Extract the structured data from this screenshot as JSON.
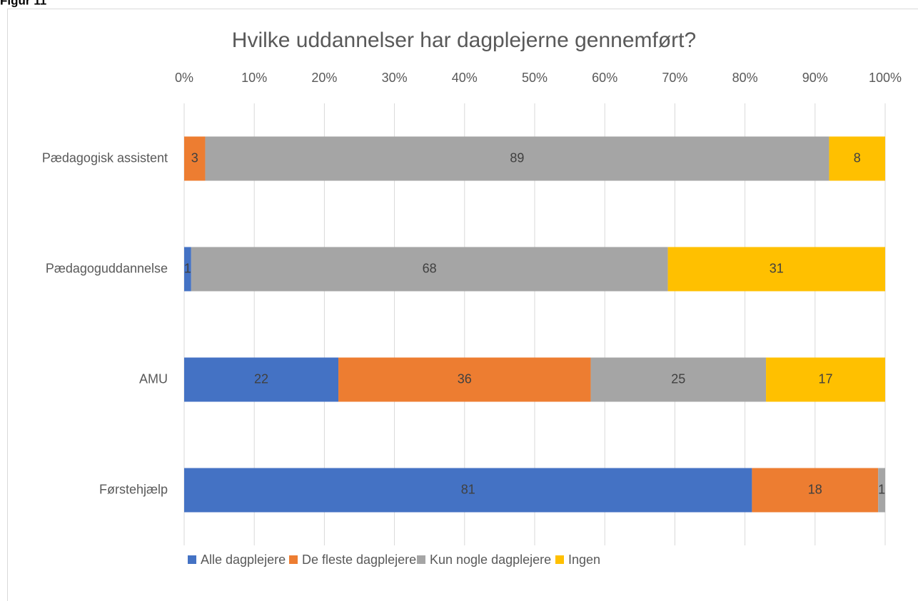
{
  "figure_label": "Figur 11",
  "chart_data": {
    "type": "stacked_barh",
    "title": "Hvilke uddannelser har dagplejerne gennemført?",
    "categories": [
      "Pædagogisk assistent",
      "Pædagoguddannelse",
      "AMU",
      "Førstehjælp"
    ],
    "series": [
      {
        "name": "Alle dagplejere",
        "color": "#4472c4",
        "values": [
          0,
          1,
          22,
          81
        ]
      },
      {
        "name": "De fleste dagplejere",
        "color": "#ed7d31",
        "values": [
          3,
          0,
          36,
          18
        ]
      },
      {
        "name": "Kun nogle dagplejere",
        "color": "#a5a5a5",
        "values": [
          89,
          68,
          25,
          1
        ]
      },
      {
        "name": "Ingen",
        "color": "#ffc000",
        "values": [
          8,
          31,
          17,
          0
        ]
      }
    ],
    "xlim": [
      0,
      100
    ],
    "xticks": [
      {
        "value": 0,
        "label": "0%"
      },
      {
        "value": 10,
        "label": "10%"
      },
      {
        "value": 20,
        "label": "20%"
      },
      {
        "value": 30,
        "label": "30%"
      },
      {
        "value": 40,
        "label": "40%"
      },
      {
        "value": 50,
        "label": "50%"
      },
      {
        "value": 60,
        "label": "60%"
      },
      {
        "value": 70,
        "label": "70%"
      },
      {
        "value": 80,
        "label": "80%"
      },
      {
        "value": 90,
        "label": "90%"
      },
      {
        "value": 100,
        "label": "100%"
      }
    ],
    "grid": true,
    "legend": "bottom"
  }
}
